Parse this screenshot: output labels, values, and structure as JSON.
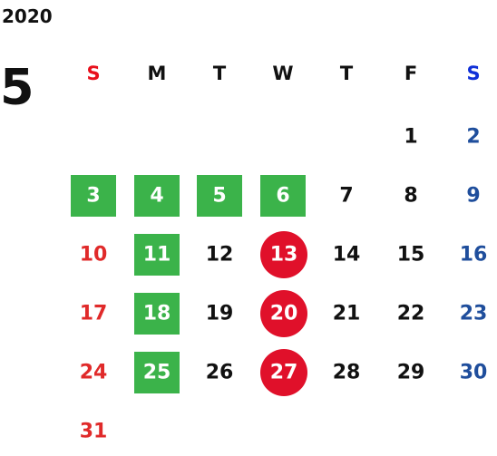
{
  "year": "2020",
  "month": "5",
  "weekdays": [
    "S",
    "M",
    "T",
    "W",
    "T",
    "F",
    "S"
  ],
  "weeks": [
    [
      null,
      null,
      null,
      null,
      null,
      {
        "text": "1",
        "mark": "none"
      },
      {
        "text": "2",
        "mark": "none"
      }
    ],
    [
      {
        "text": "3",
        "mark": "green"
      },
      {
        "text": "4",
        "mark": "green"
      },
      {
        "text": "5",
        "mark": "green"
      },
      {
        "text": "6",
        "mark": "green"
      },
      {
        "text": "7",
        "mark": "none"
      },
      {
        "text": "8",
        "mark": "none"
      },
      {
        "text": "9",
        "mark": "none"
      }
    ],
    [
      {
        "text": "10",
        "mark": "none"
      },
      {
        "text": "11",
        "mark": "green"
      },
      {
        "text": "12",
        "mark": "none"
      },
      {
        "text": "13",
        "mark": "red"
      },
      {
        "text": "14",
        "mark": "none"
      },
      {
        "text": "15",
        "mark": "none"
      },
      {
        "text": "16",
        "mark": "none"
      }
    ],
    [
      {
        "text": "17",
        "mark": "none"
      },
      {
        "text": "18",
        "mark": "green"
      },
      {
        "text": "19",
        "mark": "none"
      },
      {
        "text": "20",
        "mark": "red"
      },
      {
        "text": "21",
        "mark": "none"
      },
      {
        "text": "22",
        "mark": "none"
      },
      {
        "text": "23",
        "mark": "none"
      }
    ],
    [
      {
        "text": "24",
        "mark": "none"
      },
      {
        "text": "25",
        "mark": "green"
      },
      {
        "text": "26",
        "mark": "none"
      },
      {
        "text": "27",
        "mark": "red"
      },
      {
        "text": "28",
        "mark": "none"
      },
      {
        "text": "29",
        "mark": "none"
      },
      {
        "text": "30",
        "mark": "none"
      }
    ],
    [
      {
        "text": "31",
        "mark": "none"
      },
      null,
      null,
      null,
      null,
      null,
      null
    ]
  ]
}
